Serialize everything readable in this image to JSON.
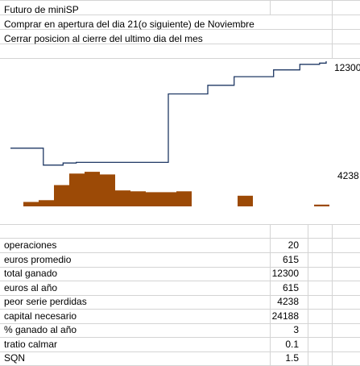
{
  "header_lines": [
    "Futuro de miniSP",
    "Comprar en apertura del dia 21(o siguiente) de Noviembre",
    "Cerrar posicion al cierre del ultimo dia del mes"
  ],
  "chart_data": {
    "type": "line",
    "title": "",
    "equity_end_label": "12300",
    "drawdown_max_label": "4238",
    "equity_steps": [
      -1500,
      -1500,
      -1500,
      -1500,
      -1500,
      -4238,
      -4238,
      -4238,
      -3900,
      -3900,
      -3800,
      -3800,
      -3800,
      -3800,
      -3800,
      -3800,
      -3800,
      -3800,
      -3800,
      -3800,
      -3800,
      -3800,
      -3800,
      -3800,
      7300,
      7300,
      7300,
      7300,
      7300,
      7300,
      8700,
      8700,
      8700,
      8700,
      10100,
      10100,
      10100,
      10100,
      10100,
      10100,
      11200,
      11200,
      11200,
      11200,
      12100,
      12100,
      12100,
      12300
    ],
    "drawdown_bars": [
      500,
      700,
      2400,
      3700,
      3900,
      3600,
      1800,
      1700,
      1600,
      1600,
      1700,
      0,
      0,
      0,
      1200,
      0,
      0,
      0,
      0,
      200
    ],
    "colors": {
      "equity_line": "#1f3864",
      "drawdown_bars": "#9c4a06"
    }
  },
  "stats": [
    {
      "label": "operaciones",
      "value": "20"
    },
    {
      "label": "euros promedio",
      "value": "615"
    },
    {
      "label": "total ganado",
      "value": "12300"
    },
    {
      "label": "euros al año",
      "value": "615"
    },
    {
      "label": "peor serie perdidas",
      "value": "4238"
    },
    {
      "label": "capital necesario",
      "value": "24188"
    },
    {
      "label": "% ganado al año",
      "value": "3"
    },
    {
      "label": "tratio calmar",
      "value": "0.1"
    },
    {
      "label": "SQN",
      "value": "1.5"
    }
  ]
}
